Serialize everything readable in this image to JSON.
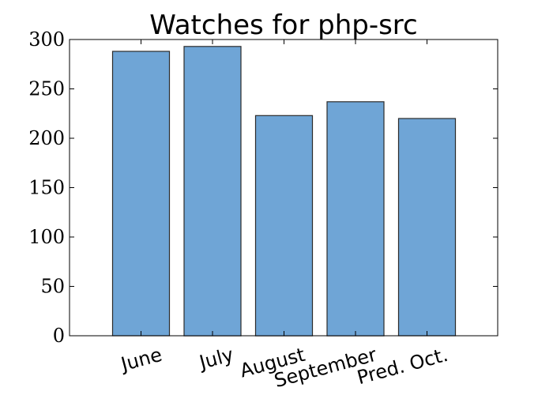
{
  "chart_data": {
    "type": "bar",
    "title": "Watches for php-src",
    "categories": [
      "June",
      "July",
      "August",
      "September",
      "Pred. Oct."
    ],
    "values": [
      288,
      293,
      223,
      237,
      220
    ],
    "ylim": [
      0,
      300
    ],
    "yticks": [
      0,
      50,
      100,
      150,
      200,
      250,
      300
    ],
    "bar_color": "#6fa5d6",
    "bar_edge_color": "#2b2b2b",
    "grid": false,
    "legend": "none"
  }
}
